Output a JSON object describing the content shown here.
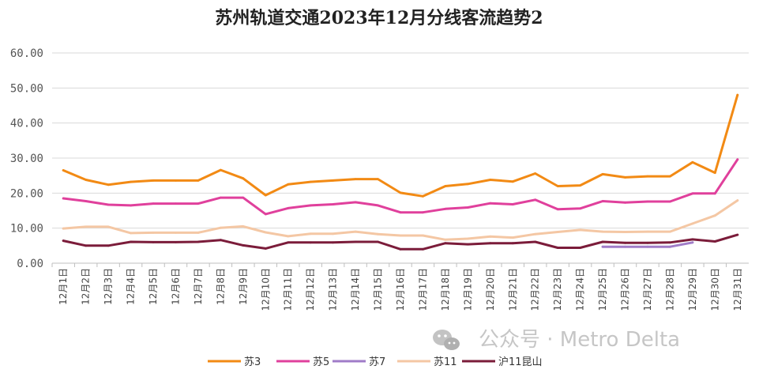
{
  "chart_data": {
    "type": "line",
    "title": "苏州轨道交通2023年12月分线客流趋势2",
    "xlabel": "",
    "ylabel": "",
    "ylim": [
      0,
      60
    ],
    "yticks": [
      "0.00",
      "10.00",
      "20.00",
      "30.00",
      "40.00",
      "50.00",
      "60.00"
    ],
    "grid": true,
    "legend_position": "bottom",
    "categories": [
      "12月1日",
      "12月2日",
      "12月3日",
      "12月4日",
      "12月5日",
      "12月6日",
      "12月7日",
      "12月8日",
      "12月9日",
      "12月10日",
      "12月11日",
      "12月12日",
      "12月13日",
      "12月14日",
      "12月15日",
      "12月16日",
      "12月17日",
      "12月18日",
      "12月19日",
      "12月20日",
      "12月21日",
      "12月22日",
      "12月23日",
      "12月24日",
      "12月25日",
      "12月26日",
      "12月27日",
      "12月28日",
      "12月29日",
      "12月30日",
      "12月31日"
    ],
    "series": [
      {
        "name": "苏3",
        "color": "#f28a14",
        "values": [
          26.5,
          23.8,
          22.4,
          23.2,
          23.6,
          23.6,
          23.6,
          26.6,
          24.2,
          19.4,
          22.5,
          23.2,
          23.6,
          24.0,
          24.0,
          20.1,
          19.1,
          22.0,
          22.6,
          23.8,
          23.3,
          25.6,
          22.0,
          22.2,
          25.4,
          24.5,
          24.8,
          24.8,
          28.8,
          25.8,
          48.0
        ]
      },
      {
        "name": "苏5",
        "color": "#e0409c",
        "values": [
          18.5,
          17.7,
          16.7,
          16.5,
          17.0,
          17.0,
          17.0,
          18.7,
          18.7,
          14.0,
          15.7,
          16.5,
          16.8,
          17.4,
          16.5,
          14.5,
          14.5,
          15.5,
          15.9,
          17.1,
          16.8,
          18.1,
          15.4,
          15.6,
          17.7,
          17.3,
          17.6,
          17.6,
          19.9,
          19.9,
          29.6
        ]
      },
      {
        "name": "苏7",
        "color": "#a07cc8",
        "values": [
          null,
          null,
          null,
          null,
          null,
          null,
          null,
          null,
          null,
          null,
          null,
          null,
          null,
          null,
          null,
          null,
          null,
          null,
          null,
          null,
          null,
          null,
          null,
          null,
          4.7,
          4.7,
          4.7,
          4.7,
          5.9,
          null,
          null
        ]
      },
      {
        "name": "苏11",
        "color": "#f4c7a4",
        "values": [
          9.9,
          10.4,
          10.4,
          8.6,
          8.7,
          8.7,
          8.7,
          10.1,
          10.5,
          8.8,
          7.7,
          8.4,
          8.4,
          9.0,
          8.3,
          7.9,
          7.9,
          6.7,
          7.0,
          7.6,
          7.3,
          8.3,
          8.9,
          9.5,
          9.0,
          8.9,
          9.0,
          9.0,
          11.3,
          13.6,
          17.9
        ]
      },
      {
        "name": "沪11昆山",
        "color": "#7b1c3a",
        "values": [
          6.4,
          5.0,
          5.0,
          6.1,
          6.0,
          6.0,
          6.1,
          6.6,
          5.1,
          4.2,
          5.9,
          5.9,
          5.9,
          6.1,
          6.1,
          4.0,
          4.0,
          5.7,
          5.4,
          5.7,
          5.7,
          6.1,
          4.4,
          4.4,
          6.1,
          5.8,
          5.8,
          5.9,
          6.8,
          6.2,
          8.1
        ]
      }
    ]
  },
  "watermark": {
    "icon": "wechat-icon",
    "text": "公众号 · Metro Delta"
  }
}
